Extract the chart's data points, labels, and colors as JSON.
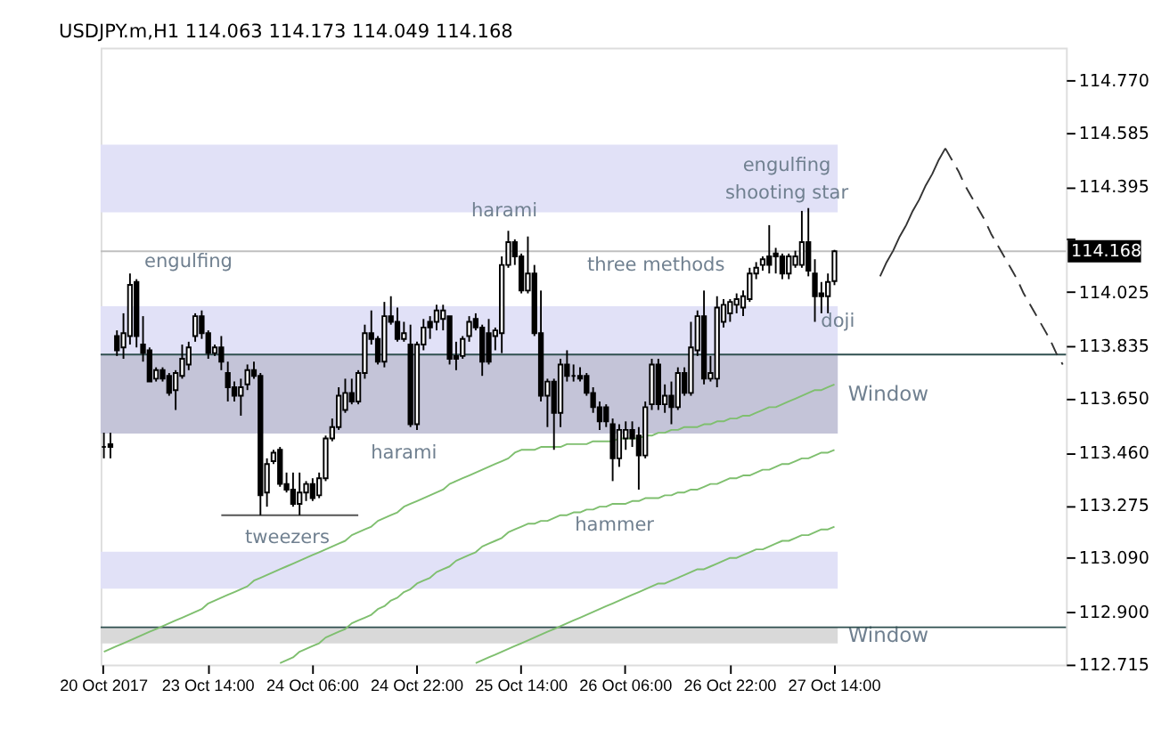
{
  "chart_data": {
    "type": "candlestick",
    "title": "USDJPY.m,H1  114.063 114.173 114.049 114.168",
    "color": "#000000",
    "categories": [
      "20 Oct 2017",
      null,
      null,
      null,
      null,
      null,
      null,
      null,
      null,
      null,
      null,
      null,
      null,
      null,
      null,
      null,
      "23 Oct 14:00",
      null,
      null,
      null,
      null,
      null,
      null,
      null,
      null,
      null,
      null,
      null,
      null,
      null,
      null,
      null,
      "24 Oct 06:00",
      null,
      null,
      null,
      null,
      null,
      null,
      null,
      null,
      null,
      null,
      null,
      null,
      null,
      null,
      null,
      "24 Oct 22:00",
      null,
      null,
      null,
      null,
      null,
      null,
      null,
      null,
      null,
      null,
      null,
      null,
      null,
      null,
      null,
      "25 Oct 14:00",
      null,
      null,
      null,
      null,
      null,
      null,
      null,
      null,
      null,
      null,
      null,
      null,
      null,
      null,
      null,
      "26 Oct 06:00",
      null,
      null,
      null,
      null,
      null,
      null,
      null,
      null,
      null,
      null,
      null,
      null,
      null,
      null,
      null,
      "26 Oct 22:00",
      null,
      null,
      null,
      null,
      null,
      null,
      null,
      null,
      null,
      null,
      null,
      null,
      null,
      null,
      null,
      "27 Oct 14:00",
      null,
      null,
      null,
      null,
      null,
      null,
      null,
      null,
      null,
      null,
      null,
      null,
      null,
      null,
      null,
      null,
      null,
      null,
      null,
      null,
      null,
      null,
      null,
      null,
      null,
      null,
      null,
      null,
      null,
      null,
      null,
      null,
      null,
      null,
      null
    ],
    "ohlc": [
      [
        113.48,
        113.53,
        113.44,
        113.48
      ],
      [
        113.49,
        113.53,
        113.44,
        113.48
      ],
      [
        113.87,
        113.89,
        113.8,
        113.82
      ],
      [
        113.83,
        113.95,
        113.79,
        113.88
      ],
      [
        113.87,
        114.09,
        113.84,
        114.05
      ],
      [
        114.06,
        114.07,
        113.83,
        113.87
      ],
      [
        113.84,
        113.94,
        113.78,
        113.81
      ],
      [
        113.82,
        113.83,
        113.71,
        113.71
      ],
      [
        113.72,
        113.76,
        113.71,
        113.75
      ],
      [
        113.75,
        113.76,
        113.71,
        113.72
      ],
      [
        113.73,
        113.74,
        113.66,
        113.67
      ],
      [
        113.68,
        113.75,
        113.61,
        113.74
      ],
      [
        113.73,
        113.84,
        113.72,
        113.79
      ],
      [
        113.77,
        113.85,
        113.75,
        113.83
      ],
      [
        113.87,
        113.95,
        113.85,
        113.94
      ],
      [
        113.94,
        113.96,
        113.86,
        113.88
      ],
      [
        113.88,
        113.89,
        113.79,
        113.81
      ],
      [
        113.81,
        113.84,
        113.8,
        113.83
      ],
      [
        113.83,
        113.87,
        113.75,
        113.78
      ],
      [
        113.74,
        113.78,
        113.64,
        113.69
      ],
      [
        113.69,
        113.71,
        113.64,
        113.66
      ],
      [
        113.66,
        113.72,
        113.59,
        113.69
      ],
      [
        113.7,
        113.77,
        113.68,
        113.75
      ],
      [
        113.75,
        113.78,
        113.72,
        113.73
      ],
      [
        113.73,
        113.74,
        113.24,
        113.31
      ],
      [
        113.32,
        113.44,
        113.27,
        113.42
      ],
      [
        113.43,
        113.47,
        113.42,
        113.46
      ],
      [
        113.47,
        113.48,
        113.34,
        113.35
      ],
      [
        113.35,
        113.39,
        113.32,
        113.33
      ],
      [
        113.33,
        113.39,
        113.27,
        113.28
      ],
      [
        113.28,
        113.39,
        113.24,
        113.32
      ],
      [
        113.32,
        113.36,
        113.29,
        113.35
      ],
      [
        113.35,
        113.37,
        113.29,
        113.3
      ],
      [
        113.31,
        113.39,
        113.3,
        113.37
      ],
      [
        113.37,
        113.52,
        113.36,
        113.51
      ],
      [
        113.51,
        113.58,
        113.5,
        113.55
      ],
      [
        113.55,
        113.69,
        113.54,
        113.66
      ],
      [
        113.61,
        113.72,
        113.6,
        113.67
      ],
      [
        113.67,
        113.72,
        113.63,
        113.64
      ],
      [
        113.64,
        113.75,
        113.63,
        113.74
      ],
      [
        113.74,
        113.91,
        113.72,
        113.88
      ],
      [
        113.88,
        113.96,
        113.84,
        113.86
      ],
      [
        113.86,
        113.87,
        113.77,
        113.78
      ],
      [
        113.78,
        113.99,
        113.76,
        113.94
      ],
      [
        113.94,
        114.01,
        113.91,
        113.92
      ],
      [
        113.92,
        113.97,
        113.85,
        113.86
      ],
      [
        113.86,
        113.92,
        113.85,
        113.88
      ],
      [
        113.84,
        113.91,
        113.55,
        113.56
      ],
      [
        113.56,
        113.85,
        113.54,
        113.84
      ],
      [
        113.84,
        113.93,
        113.82,
        113.9
      ],
      [
        113.92,
        113.94,
        113.86,
        113.9
      ],
      [
        113.92,
        113.98,
        113.89,
        113.96
      ],
      [
        113.93,
        113.98,
        113.89,
        113.96
      ],
      [
        113.94,
        113.94,
        113.77,
        113.79
      ],
      [
        113.8,
        113.85,
        113.75,
        113.79
      ],
      [
        113.8,
        113.87,
        113.79,
        113.86
      ],
      [
        113.87,
        113.94,
        113.85,
        113.92
      ],
      [
        113.93,
        113.95,
        113.89,
        113.9
      ],
      [
        113.9,
        113.91,
        113.73,
        113.78
      ],
      [
        113.88,
        113.93,
        113.77,
        113.78
      ],
      [
        113.87,
        113.9,
        113.82,
        113.89
      ],
      [
        113.88,
        114.15,
        113.81,
        114.12
      ],
      [
        114.12,
        114.24,
        114.11,
        114.2
      ],
      [
        114.2,
        114.21,
        114.12,
        114.15
      ],
      [
        114.15,
        114.16,
        114.02,
        114.03
      ],
      [
        114.03,
        114.22,
        114.02,
        114.09
      ],
      [
        114.09,
        114.12,
        113.87,
        113.88
      ],
      [
        113.88,
        114.03,
        113.64,
        113.66
      ],
      [
        113.66,
        113.72,
        113.55,
        113.71
      ],
      [
        113.71,
        113.72,
        113.47,
        113.6
      ],
      [
        113.6,
        113.79,
        113.55,
        113.77
      ],
      [
        113.77,
        113.82,
        113.71,
        113.73
      ],
      [
        113.73,
        113.77,
        113.71,
        113.73
      ],
      [
        113.73,
        113.76,
        113.71,
        113.72
      ],
      [
        113.73,
        113.74,
        113.66,
        113.67
      ],
      [
        113.67,
        113.69,
        113.6,
        113.62
      ],
      [
        113.62,
        113.64,
        113.54,
        113.57
      ],
      [
        113.62,
        113.63,
        113.55,
        113.57
      ],
      [
        113.56,
        113.58,
        113.36,
        113.44
      ],
      [
        113.44,
        113.56,
        113.41,
        113.54
      ],
      [
        113.51,
        113.57,
        113.47,
        113.54
      ],
      [
        113.54,
        113.57,
        113.48,
        113.51
      ],
      [
        113.52,
        113.55,
        113.33,
        113.45
      ],
      [
        113.45,
        113.64,
        113.44,
        113.62
      ],
      [
        113.63,
        113.79,
        113.61,
        113.77
      ],
      [
        113.77,
        113.79,
        113.61,
        113.63
      ],
      [
        113.63,
        113.7,
        113.6,
        113.66
      ],
      [
        113.66,
        113.71,
        113.56,
        113.62
      ],
      [
        113.62,
        113.76,
        113.61,
        113.74
      ],
      [
        113.74,
        113.76,
        113.66,
        113.67
      ],
      [
        113.67,
        113.92,
        113.66,
        113.83
      ],
      [
        113.82,
        113.96,
        113.8,
        113.94
      ],
      [
        113.94,
        114.03,
        113.7,
        113.72
      ],
      [
        113.72,
        113.8,
        113.71,
        113.74
      ],
      [
        113.72,
        114.01,
        113.69,
        113.97
      ],
      [
        113.92,
        114.0,
        113.9,
        113.98
      ],
      [
        113.95,
        114.0,
        113.92,
        113.99
      ],
      [
        113.98,
        114.02,
        113.95,
        114.0
      ],
      [
        113.97,
        114.03,
        113.94,
        114.01
      ],
      [
        114.0,
        114.11,
        113.99,
        114.09
      ],
      [
        114.09,
        114.13,
        114.07,
        114.11
      ],
      [
        114.12,
        114.15,
        114.1,
        114.14
      ],
      [
        114.15,
        114.26,
        114.09,
        114.12
      ],
      [
        114.16,
        114.18,
        114.09,
        114.15
      ],
      [
        114.15,
        114.16,
        114.07,
        114.09
      ],
      [
        114.09,
        114.16,
        114.07,
        114.15
      ],
      [
        114.12,
        114.17,
        114.11,
        114.15
      ],
      [
        114.12,
        114.31,
        114.11,
        114.2
      ],
      [
        114.2,
        114.32,
        114.08,
        114.1
      ],
      [
        114.09,
        114.14,
        113.92,
        114.01
      ],
      [
        114.02,
        114.06,
        113.95,
        114.01
      ],
      [
        114.01,
        114.09,
        113.95,
        114.06
      ],
      [
        114.063,
        114.173,
        114.049,
        114.168
      ],
      null,
      null,
      null,
      null,
      null,
      null,
      null,
      null,
      null,
      null,
      null,
      null,
      null,
      null,
      null,
      null,
      null,
      null,
      null,
      null,
      null,
      null,
      null,
      null,
      null,
      null,
      null,
      null,
      null,
      null,
      null,
      null,
      null,
      null,
      null
    ],
    "series": [
      {
        "type": "line",
        "color": "#7fbf6f",
        "values": [
          112.76,
          112.77,
          112.78,
          112.79,
          112.8,
          112.81,
          112.82,
          112.83,
          112.84,
          112.85,
          112.86,
          112.87,
          112.88,
          112.89,
          112.9,
          112.91,
          112.93,
          112.94,
          112.95,
          112.96,
          112.97,
          112.98,
          112.99,
          113.01,
          113.02,
          113.03,
          113.04,
          113.05,
          113.06,
          113.07,
          113.08,
          113.09,
          113.1,
          113.11,
          113.12,
          113.13,
          113.14,
          113.15,
          113.17,
          113.18,
          113.19,
          113.2,
          113.22,
          113.23,
          113.24,
          113.25,
          113.27,
          113.28,
          113.29,
          113.3,
          113.31,
          113.32,
          113.33,
          113.35,
          113.36,
          113.37,
          113.38,
          113.39,
          113.4,
          113.41,
          113.42,
          113.43,
          113.44,
          113.46,
          113.47,
          113.47,
          113.47,
          113.48,
          113.48,
          113.48,
          113.48,
          113.49,
          113.49,
          113.49,
          113.49,
          113.5,
          113.5,
          113.5,
          113.5,
          113.51,
          113.51,
          113.51,
          113.51,
          113.52,
          113.52,
          113.53,
          113.53,
          113.54,
          113.54,
          113.55,
          113.55,
          113.55,
          113.56,
          113.56,
          113.57,
          113.57,
          113.58,
          113.58,
          113.59,
          113.59,
          113.6,
          113.61,
          113.62,
          113.62,
          113.63,
          113.64,
          113.65,
          113.66,
          113.67,
          113.68,
          113.68,
          113.69,
          113.7,
          null,
          null,
          null,
          null,
          null,
          null,
          null,
          null,
          null,
          null,
          null,
          null,
          null,
          null,
          null,
          null,
          null,
          null,
          null,
          null,
          null,
          null,
          null,
          null,
          null,
          null,
          null,
          null,
          null,
          null,
          null,
          null,
          null,
          null,
          null
        ]
      },
      {
        "type": "line",
        "color": "#7fbf6f",
        "values": [
          null,
          null,
          null,
          null,
          null,
          null,
          null,
          null,
          null,
          null,
          null,
          null,
          null,
          null,
          null,
          null,
          null,
          null,
          null,
          null,
          null,
          null,
          null,
          null,
          null,
          null,
          null,
          112.72,
          112.73,
          112.74,
          112.76,
          112.77,
          112.78,
          112.79,
          112.81,
          112.82,
          112.83,
          112.84,
          112.86,
          112.87,
          112.88,
          112.89,
          112.91,
          112.92,
          112.94,
          112.95,
          112.97,
          112.98,
          113.0,
          113.01,
          113.02,
          113.04,
          113.05,
          113.06,
          113.08,
          113.09,
          113.1,
          113.11,
          113.13,
          113.14,
          113.15,
          113.16,
          113.18,
          113.19,
          113.2,
          113.21,
          113.21,
          113.22,
          113.22,
          113.23,
          113.24,
          113.24,
          113.25,
          113.25,
          113.26,
          113.26,
          113.27,
          113.27,
          113.28,
          113.28,
          113.28,
          113.29,
          113.29,
          113.3,
          113.3,
          113.3,
          113.31,
          113.31,
          113.32,
          113.32,
          113.33,
          113.33,
          113.34,
          113.35,
          113.35,
          113.36,
          113.37,
          113.37,
          113.38,
          113.38,
          113.39,
          113.4,
          113.4,
          113.41,
          113.42,
          113.42,
          113.43,
          113.44,
          113.44,
          113.45,
          113.46,
          113.46,
          113.47,
          null,
          null,
          null,
          null,
          null,
          null,
          null,
          null,
          null,
          null,
          null,
          null,
          null,
          null,
          null,
          null,
          null,
          null,
          null,
          null,
          null,
          null,
          null,
          null,
          null,
          null,
          null,
          null,
          null,
          null,
          null,
          null,
          null,
          null,
          null
        ]
      },
      {
        "type": "line",
        "color": "#7fbf6f",
        "values": [
          null,
          null,
          null,
          null,
          null,
          null,
          null,
          null,
          null,
          null,
          null,
          null,
          null,
          null,
          null,
          null,
          null,
          null,
          null,
          null,
          null,
          null,
          null,
          null,
          null,
          null,
          null,
          null,
          null,
          null,
          null,
          null,
          null,
          null,
          null,
          null,
          null,
          null,
          null,
          null,
          null,
          null,
          null,
          null,
          null,
          null,
          null,
          null,
          null,
          null,
          null,
          null,
          null,
          null,
          null,
          null,
          null,
          112.72,
          112.73,
          112.74,
          112.75,
          112.76,
          112.77,
          112.78,
          112.79,
          112.8,
          112.81,
          112.82,
          112.83,
          112.84,
          112.85,
          112.86,
          112.87,
          112.88,
          112.89,
          112.9,
          112.91,
          112.92,
          112.93,
          112.94,
          112.95,
          112.96,
          112.97,
          112.98,
          112.99,
          113.0,
          113.0,
          113.01,
          113.02,
          113.03,
          113.04,
          113.05,
          113.05,
          113.06,
          113.07,
          113.08,
          113.09,
          113.09,
          113.1,
          113.11,
          113.12,
          113.12,
          113.13,
          113.14,
          113.15,
          113.15,
          113.16,
          113.17,
          113.17,
          113.18,
          113.19,
          113.19,
          113.2,
          null,
          null,
          null,
          null,
          null,
          null,
          null,
          null,
          null,
          null,
          null,
          null,
          null,
          null,
          null,
          null,
          null,
          null,
          null,
          null,
          null,
          null,
          null,
          null,
          null,
          null,
          null,
          null,
          null,
          null,
          null,
          null,
          null,
          null,
          null
        ]
      },
      {
        "type": "line",
        "color": "#555555",
        "values": [
          null,
          null,
          null,
          null,
          null,
          null,
          null,
          null,
          null,
          null,
          null,
          null,
          null,
          null,
          null,
          null,
          null,
          null,
          113.24,
          113.24,
          113.24,
          113.24,
          113.24,
          113.24,
          113.24,
          113.24,
          113.24,
          113.24,
          113.24,
          113.24,
          113.24,
          113.24,
          113.24,
          113.24,
          113.24,
          113.24,
          113.24,
          113.24,
          113.24,
          113.24,
          null,
          null,
          null,
          null,
          null,
          null,
          null,
          null,
          null,
          null,
          null,
          null,
          null,
          null,
          null,
          null,
          null,
          null,
          null,
          null,
          null,
          null,
          null,
          null,
          null,
          null,
          null,
          null,
          null,
          null,
          null,
          null,
          null,
          null,
          null,
          null,
          null,
          null,
          null,
          null,
          null,
          null,
          null,
          null,
          null,
          null,
          null,
          null,
          null,
          null,
          null,
          null,
          null,
          null,
          null,
          null,
          null,
          null,
          null,
          null,
          null,
          null,
          null,
          null,
          null,
          null,
          null,
          null,
          null,
          null,
          null,
          null,
          null,
          null,
          null,
          null,
          null,
          null,
          null,
          null,
          null,
          null,
          null,
          null,
          null,
          null,
          null,
          null,
          null,
          null,
          null,
          null,
          null,
          null,
          null,
          null,
          null,
          null,
          null,
          null,
          null,
          null,
          null,
          null,
          null,
          null,
          null,
          null
        ]
      },
      {
        "type": "line",
        "color": "#333333",
        "line_style": "solid",
        "values": [
          null,
          null,
          null,
          null,
          null,
          null,
          null,
          null,
          null,
          null,
          null,
          null,
          null,
          null,
          null,
          null,
          null,
          null,
          null,
          null,
          null,
          null,
          null,
          null,
          null,
          null,
          null,
          null,
          null,
          null,
          null,
          null,
          null,
          null,
          null,
          null,
          null,
          null,
          null,
          null,
          null,
          null,
          null,
          null,
          null,
          null,
          null,
          null,
          null,
          null,
          null,
          null,
          null,
          null,
          null,
          null,
          null,
          null,
          null,
          null,
          null,
          null,
          null,
          null,
          null,
          null,
          null,
          null,
          null,
          null,
          null,
          null,
          null,
          null,
          null,
          null,
          null,
          null,
          null,
          null,
          null,
          null,
          null,
          null,
          null,
          null,
          null,
          null,
          null,
          null,
          null,
          null,
          null,
          null,
          null,
          null,
          null,
          null,
          null,
          null,
          null,
          null,
          null,
          null,
          null,
          null,
          null,
          null,
          null,
          null,
          null,
          null,
          null,
          null,
          null,
          null,
          null,
          null,
          null,
          114.08,
          114.13,
          114.17,
          114.22,
          114.26,
          114.31,
          114.35,
          114.4,
          114.44,
          114.49,
          114.53,
          null,
          null,
          null,
          null,
          null,
          null,
          null,
          null,
          null,
          null,
          null,
          null,
          null,
          null,
          null,
          null,
          null,
          null
        ]
      },
      {
        "type": "line",
        "color": "#333333",
        "line_style": "dashed",
        "values": [
          null,
          null,
          null,
          null,
          null,
          null,
          null,
          null,
          null,
          null,
          null,
          null,
          null,
          null,
          null,
          null,
          null,
          null,
          null,
          null,
          null,
          null,
          null,
          null,
          null,
          null,
          null,
          null,
          null,
          null,
          null,
          null,
          null,
          null,
          null,
          null,
          null,
          null,
          null,
          null,
          null,
          null,
          null,
          null,
          null,
          null,
          null,
          null,
          null,
          null,
          null,
          null,
          null,
          null,
          null,
          null,
          null,
          null,
          null,
          null,
          null,
          null,
          null,
          null,
          null,
          null,
          null,
          null,
          null,
          null,
          null,
          null,
          null,
          null,
          null,
          null,
          null,
          null,
          null,
          null,
          null,
          null,
          null,
          null,
          null,
          null,
          null,
          null,
          null,
          null,
          null,
          null,
          null,
          null,
          null,
          null,
          null,
          null,
          null,
          null,
          null,
          null,
          null,
          null,
          null,
          null,
          null,
          null,
          null,
          null,
          null,
          null,
          null,
          null,
          null,
          null,
          null,
          null,
          null,
          null,
          null,
          null,
          null,
          null,
          null,
          null,
          null,
          null,
          null,
          114.53,
          114.49,
          114.45,
          114.4,
          114.36,
          114.32,
          114.28,
          114.23,
          114.19,
          114.15,
          114.11,
          114.07,
          114.02,
          113.98,
          113.94,
          113.9,
          113.86,
          113.81,
          113.77
        ]
      }
    ],
    "ylim": [
      112.715,
      114.884
    ],
    "yticks": [
      {
        "value": 112.715,
        "label": "112.715"
      },
      {
        "value": 112.9,
        "label": "112.900"
      },
      {
        "value": 113.09,
        "label": "113.090"
      },
      {
        "value": 113.275,
        "label": "113.275"
      },
      {
        "value": 113.46,
        "label": "113.460"
      },
      {
        "value": 113.65,
        "label": "113.650"
      },
      {
        "value": 113.835,
        "label": "113.835"
      },
      {
        "value": 114.025,
        "label": "114.025"
      },
      {
        "value": 114.21,
        "label": null
      },
      {
        "value": 114.395,
        "label": "114.395"
      },
      {
        "value": 114.585,
        "label": "114.585"
      },
      {
        "value": 114.77,
        "label": "114.770"
      }
    ],
    "bands": [
      {
        "axis": "y",
        "from": 114.305,
        "to": 114.543,
        "color": "#e1e1f7"
      },
      {
        "axis": "y",
        "from": 113.527,
        "to": 113.975,
        "color": "#e1e1f7"
      },
      {
        "axis": "y",
        "from": 113.527,
        "to": 113.805,
        "color": "#c4c4d8",
        "label": "Window"
      },
      {
        "axis": "y",
        "from": 112.982,
        "to": 113.112,
        "color": "#e1e1f7"
      },
      {
        "axis": "y",
        "from": 112.789,
        "to": 112.846,
        "color": "#d9d9d9",
        "label": "Window"
      }
    ],
    "ref_lines": [
      {
        "axis": "y",
        "value": 114.168,
        "label": "114.168",
        "color": "#c0c0c0"
      },
      {
        "axis": "y",
        "value": 113.805,
        "color": "#2f4f4f"
      },
      {
        "axis": "y",
        "value": 112.846,
        "color": "#2f4f4f"
      }
    ],
    "annotations": [
      "engulfing",
      {
        "text": "harami",
        "y": 114.31
      },
      "harami",
      "tweezers",
      "three methods",
      "hammer",
      "engulfing",
      "shooting star",
      "doji"
    ],
    "grid": false
  }
}
